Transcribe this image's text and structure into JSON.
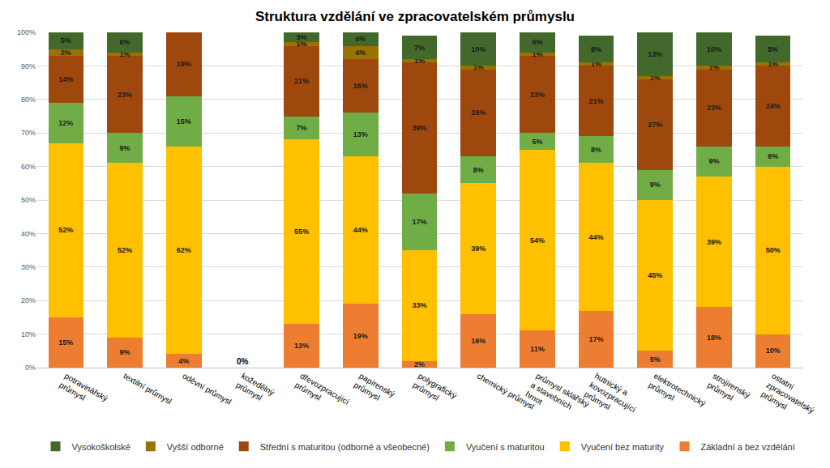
{
  "chart_data": {
    "type": "bar",
    "title": "Struktura vzdělání ve zpracovatelském průmyslu",
    "stacked": true,
    "data_labels": true,
    "grid": true,
    "legend": "bottom",
    "categories": [
      "potravinářský průmysl",
      "textilní průmysl",
      "oděvní průmysl",
      "kožedělný průmysl",
      "dřevozpracující průmysl",
      "papírenský průmysl",
      "polygrafický průmysl",
      "chemický průmysl",
      "průmysl sklářský a stavebních hmot",
      "hutnický a kovozpracující průmysl",
      "elektrotechnický průmysl",
      "strojírenský průmysl",
      "ostatní zpracovatelský průmysl"
    ],
    "ylim": [
      0,
      100
    ],
    "yticks": [
      {
        "value": 0,
        "label": "0%"
      },
      {
        "value": 10,
        "label": "10%"
      },
      {
        "value": 20,
        "label": "20%"
      },
      {
        "value": 30,
        "label": "30%"
      },
      {
        "value": 40,
        "label": "40%"
      },
      {
        "value": 50,
        "label": "50%"
      },
      {
        "value": 60,
        "label": "60%"
      },
      {
        "value": 70,
        "label": "70%"
      },
      {
        "value": 80,
        "label": "80%"
      },
      {
        "value": 90,
        "label": "90%"
      },
      {
        "value": 100,
        "label": "100%"
      }
    ],
    "series": [
      {
        "name": "Základní a bez vzdělání",
        "color": "#ed7d31",
        "values": [
          15,
          9,
          4,
          0,
          13,
          19,
          2,
          16,
          11,
          17,
          5,
          18,
          10
        ],
        "value_labels": [
          "15%",
          "9%",
          "4%",
          "0%",
          "13%",
          "19%",
          "2%",
          "16%",
          "11%",
          "17%",
          "5%",
          "18%",
          "10%"
        ]
      },
      {
        "name": "Vyučení bez maturity",
        "color": "#ffc000",
        "values": [
          52,
          52,
          62,
          0,
          55,
          44,
          33,
          39,
          54,
          44,
          45,
          39,
          50
        ],
        "value_labels": [
          "52%",
          "52%",
          "62%",
          null,
          "55%",
          "44%",
          "33%",
          "39%",
          "54%",
          "44%",
          "45%",
          "39%",
          "50%"
        ]
      },
      {
        "name": "Vyučení s maturitou",
        "color": "#70ad47",
        "values": [
          12,
          9,
          15,
          0,
          7,
          13,
          17,
          8,
          5,
          8,
          9,
          9,
          6
        ],
        "value_labels": [
          "12%",
          "9%",
          "15%",
          null,
          "7%",
          "13%",
          "17%",
          "8%",
          "5%",
          "8%",
          "9%",
          "9%",
          "6%"
        ]
      },
      {
        "name": "Střední s maturitou (odborné a všeobecné)",
        "color": "#9e480e",
        "values": [
          14,
          23,
          19,
          0,
          21,
          16,
          39,
          26,
          23,
          21,
          27,
          23,
          24
        ],
        "value_labels": [
          "14%",
          "23%",
          "19%",
          null,
          "21%",
          "16%",
          "39%",
          "26%",
          "23%",
          "21%",
          "27%",
          "23%",
          "24%"
        ]
      },
      {
        "name": "Vyšší odborné",
        "color": "#997300",
        "values": [
          2,
          1,
          0,
          0,
          1,
          4,
          1,
          1,
          1,
          1,
          1,
          1,
          1
        ],
        "value_labels": [
          "2%",
          "1%",
          null,
          null,
          "1%",
          "4%",
          "1%",
          "1%",
          "1%",
          "1%",
          "1%",
          "1%",
          "1%"
        ]
      },
      {
        "name": "Vysokoškolské",
        "color": "#43682b",
        "values": [
          5,
          6,
          0,
          0,
          3,
          4,
          7,
          10,
          6,
          8,
          13,
          10,
          8
        ],
        "value_labels": [
          "5%",
          "6%",
          null,
          null,
          "3%",
          "4%",
          "7%",
          "10%",
          "6%",
          "8%",
          "13%",
          "10%",
          "8%"
        ]
      }
    ]
  }
}
